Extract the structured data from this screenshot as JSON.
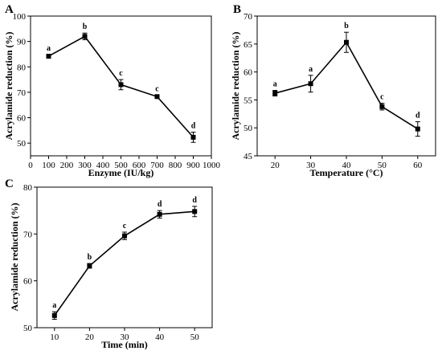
{
  "figure": {
    "panels": [
      {
        "letter": "A",
        "chart_data": {
          "type": "line",
          "xlabel": "Enzyme (IU/kg)",
          "ylabel": "Acrylamide reduction (%)",
          "xlim": [
            0,
            1000
          ],
          "ylim": [
            45,
            100
          ],
          "xticks": [
            0,
            100,
            200,
            300,
            400,
            500,
            600,
            700,
            800,
            900,
            1000
          ],
          "yticks": [
            50,
            60,
            70,
            80,
            90,
            100
          ],
          "x": [
            100,
            300,
            500,
            700,
            900
          ],
          "y": [
            84.2,
            92.0,
            73.0,
            68.3,
            52.3
          ],
          "err": [
            0.6,
            1.3,
            2.0,
            0.6,
            2.0
          ],
          "labels": [
            "a",
            "b",
            "c",
            "c",
            "d"
          ],
          "grid": false
        }
      },
      {
        "letter": "B",
        "chart_data": {
          "type": "line",
          "xlabel": "Temperature (°C)",
          "ylabel": "Acrylamide reduction (%)",
          "xlim": [
            15,
            65
          ],
          "ylim": [
            45,
            70
          ],
          "xticks": [
            20,
            30,
            40,
            50,
            60
          ],
          "yticks": [
            45,
            50,
            55,
            60,
            65,
            70
          ],
          "x": [
            20,
            30,
            40,
            50,
            60
          ],
          "y": [
            56.2,
            57.9,
            65.3,
            53.8,
            49.8
          ],
          "err": [
            0.5,
            1.5,
            1.8,
            0.6,
            1.3
          ],
          "labels": [
            "a",
            "a",
            "b",
            "c",
            "d"
          ],
          "grid": false
        }
      },
      {
        "letter": "C",
        "chart_data": {
          "type": "line",
          "xlabel": "Time (min)",
          "ylabel": "Acrylamide reduction (%)",
          "xlim": [
            5,
            55
          ],
          "ylim": [
            50,
            80
          ],
          "xticks": [
            10,
            20,
            30,
            40,
            50
          ],
          "yticks": [
            50,
            60,
            70,
            80
          ],
          "x": [
            10,
            20,
            30,
            40,
            50
          ],
          "y": [
            52.6,
            63.2,
            69.6,
            74.2,
            74.8
          ],
          "err": [
            0.8,
            0.5,
            0.8,
            0.8,
            1.1
          ],
          "labels": [
            "a",
            "b",
            "c",
            "d",
            "d"
          ],
          "grid": false
        }
      }
    ]
  }
}
